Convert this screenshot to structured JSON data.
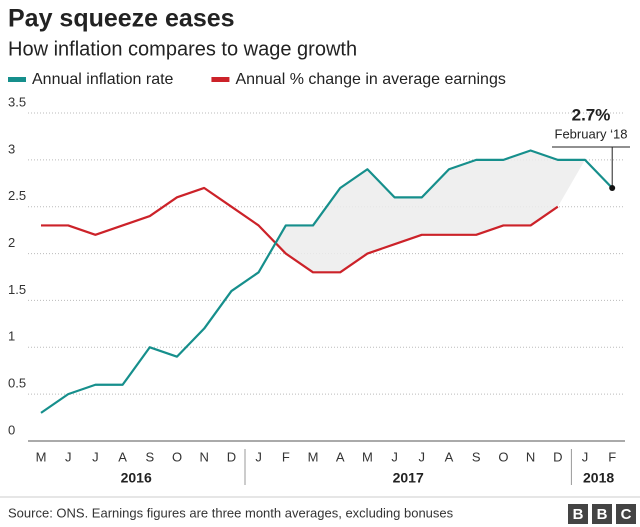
{
  "chart_data": {
    "type": "line",
    "title": "Pay squeeze eases",
    "subtitle": "How inflation compares to wage growth",
    "categories": [
      "M",
      "J",
      "J",
      "A",
      "S",
      "O",
      "N",
      "D",
      "J",
      "F",
      "M",
      "A",
      "M",
      "J",
      "J",
      "A",
      "S",
      "O",
      "N",
      "D",
      "J",
      "F"
    ],
    "x_groups": [
      "2016",
      "2017",
      "2018"
    ],
    "series": [
      {
        "name": "Annual inflation rate",
        "color": "#168f8c",
        "values": [
          0.3,
          0.5,
          0.6,
          0.6,
          1.0,
          0.9,
          1.2,
          1.6,
          1.8,
          2.3,
          2.3,
          2.7,
          2.9,
          2.6,
          2.6,
          2.9,
          3.0,
          3.0,
          3.1,
          3.0,
          3.0,
          2.7
        ]
      },
      {
        "name": "Annual % change in average earnings",
        "color": "#cc2229",
        "values": [
          2.3,
          2.3,
          2.2,
          2.3,
          2.4,
          2.6,
          2.7,
          2.5,
          2.3,
          2.0,
          1.8,
          1.8,
          2.0,
          2.1,
          2.2,
          2.2,
          2.2,
          2.3,
          2.3,
          2.5,
          null,
          null
        ]
      }
    ],
    "ylim": [
      0,
      3.5
    ],
    "yticks": [
      0,
      0.5,
      1,
      1.5,
      2,
      2.5,
      3,
      3.5
    ],
    "grid": true,
    "annotation": {
      "label": "2.7%",
      "note": "February ‘18"
    },
    "source": "Source: ONS. Earnings figures are three month averages, excluding bonuses",
    "logo": [
      "B",
      "B",
      "C"
    ]
  }
}
